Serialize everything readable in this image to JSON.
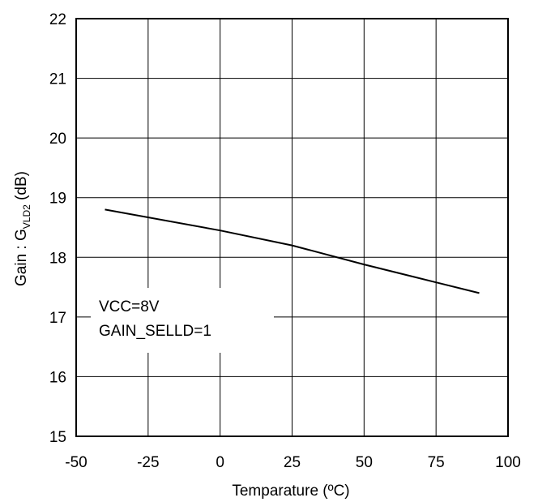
{
  "chart_data": {
    "type": "line",
    "title": "",
    "xlabel": "Temparature (ºC)",
    "ylabel": {
      "prefix": "Gain : G",
      "subscript": "VLD2",
      "suffix": " (dB)"
    },
    "xlim": [
      -50,
      100
    ],
    "ylim": [
      15,
      22
    ],
    "xticks": [
      -50,
      -25,
      0,
      25,
      50,
      75,
      100
    ],
    "yticks": [
      15,
      16,
      17,
      18,
      19,
      20,
      21,
      22
    ],
    "grid": true,
    "legend": "none",
    "series": [
      {
        "x": [
          -40,
          0,
          25,
          50,
          75,
          90
        ],
        "y": [
          18.8,
          18.45,
          18.2,
          17.88,
          17.58,
          17.4
        ],
        "color": "#000000"
      }
    ],
    "annotations": [
      "VCC=8V",
      "GAIN_SELLD=1"
    ]
  }
}
